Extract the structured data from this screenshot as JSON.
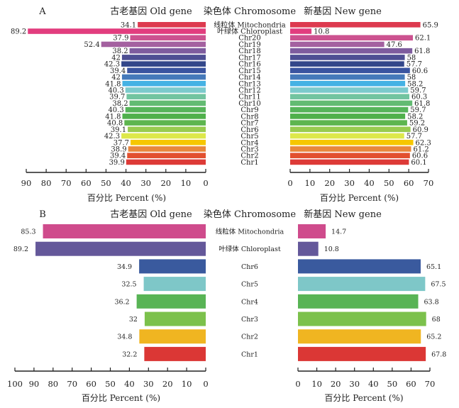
{
  "chart_data": [
    {
      "panel": "A",
      "type": "bar",
      "orientation": "horizontal-mirrored",
      "titles": {
        "left": "古老基因 Old gene",
        "center": "染色体 Chromosome",
        "right": "新基因 New gene"
      },
      "categories": [
        "线粒体 Mitochondria",
        "叶绿体 Chloroplast",
        "Chr20",
        "Chr19",
        "Chr18",
        "Chr17",
        "Chr16",
        "Chr15",
        "Chr14",
        "Chr13",
        "Chr12",
        "Chr11",
        "Chr10",
        "Chr9",
        "Chr8",
        "Chr7",
        "Chr6",
        "Chr5",
        "Chr4",
        "Chr3",
        "Chr2",
        "Chr1"
      ],
      "colors": [
        "#dd3a4f",
        "#e23d7e",
        "#cc5290",
        "#a461a0",
        "#7e5c9e",
        "#4e4f93",
        "#33478a",
        "#3a54a0",
        "#4579ba",
        "#45b2e4",
        "#7ccacc",
        "#72c4a0",
        "#62bb72",
        "#56b45a",
        "#4fb04b",
        "#5db54f",
        "#98cb4f",
        "#dde84a",
        "#f6c700",
        "#e8873c",
        "#e2502f",
        "#dd3a37"
      ],
      "series": [
        {
          "name": "古老基因 Old gene",
          "side": "left",
          "values": [
            34.1,
            89.2,
            37.9,
            52.4,
            38.2,
            42.0,
            42.3,
            39.4,
            42.0,
            41.8,
            40.3,
            39.7,
            38.2,
            40.3,
            41.8,
            40.8,
            39.1,
            42.3,
            37.7,
            38.9,
            39.4,
            39.9
          ],
          "xlim": [
            90,
            0
          ],
          "ticks": [
            90,
            80,
            70,
            60,
            50,
            40,
            30,
            20,
            10,
            0
          ],
          "xlabel": "百分比 Percent (%)"
        },
        {
          "name": "新基因 New gene",
          "side": "right",
          "values": [
            65.9,
            10.8,
            62.1,
            47.6,
            61.8,
            58.0,
            57.7,
            60.6,
            58.0,
            58.2,
            59.7,
            60.3,
            61.8,
            59.7,
            58.2,
            59.2,
            60.9,
            57.7,
            62.3,
            61.2,
            60.6,
            60.1
          ],
          "xlim": [
            0,
            70
          ],
          "ticks": [
            0,
            10,
            20,
            30,
            40,
            50,
            60,
            70
          ],
          "xlabel": "百分比 Percent (%)"
        }
      ]
    },
    {
      "panel": "B",
      "type": "bar",
      "orientation": "horizontal-mirrored",
      "titles": {
        "left": "古老基因 Old gene",
        "center": "染色体 Chromosome",
        "right": "新基因 New gene"
      },
      "categories": [
        "线粒体 Mitochondria",
        "叶绿体 Chloroplast",
        "Chr6",
        "Chr5",
        "Chr4",
        "Chr3",
        "Chr2",
        "Chr1"
      ],
      "colors": [
        "#cf4b8c",
        "#64589a",
        "#3a5a9e",
        "#7ec7c8",
        "#58b455",
        "#7cc14c",
        "#f0b521",
        "#db3735"
      ],
      "series": [
        {
          "name": "古老基因 Old gene",
          "side": "left",
          "values": [
            85.3,
            89.2,
            34.9,
            32.5,
            36.2,
            32.0,
            34.8,
            32.2
          ],
          "xlim": [
            100,
            0
          ],
          "ticks": [
            100,
            90,
            80,
            70,
            60,
            50,
            40,
            30,
            20,
            10,
            0
          ],
          "xlabel": "百分比 Percent (%)"
        },
        {
          "name": "新基因 New gene",
          "side": "right",
          "values": [
            14.7,
            10.8,
            65.1,
            67.5,
            63.8,
            68.0,
            65.2,
            67.8
          ],
          "xlim": [
            0,
            70
          ],
          "ticks": [
            0,
            10,
            20,
            30,
            40,
            50,
            60,
            70
          ],
          "xlabel": "百分比 Percent (%)"
        }
      ]
    }
  ]
}
